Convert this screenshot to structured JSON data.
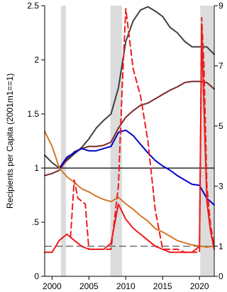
{
  "chart_data": {
    "type": "line",
    "xlim": [
      1999,
      2022
    ],
    "left_axis": {
      "label": "Recipients per Capita (2001m1==1)",
      "ylim": [
        0,
        2.5
      ],
      "ticks": [
        0,
        0.5,
        1,
        1.5,
        2,
        2.5
      ],
      "tick_labels": [
        "0",
        ".5",
        "1",
        "1.5",
        "2",
        "2.5"
      ]
    },
    "right_axis": {
      "ylim": [
        0,
        9
      ],
      "ticks": [
        0,
        1,
        3,
        5,
        7,
        9
      ],
      "tick_labels": [
        "0",
        "1",
        "3",
        "5",
        "7",
        "9"
      ]
    },
    "x_ticks": [
      2000,
      2005,
      2010,
      2015,
      2020
    ],
    "x_tick_labels": [
      "2000",
      "2005",
      "2010",
      "2015",
      "2020"
    ],
    "grid": false,
    "recession_shading": [
      [
        2001.2,
        2001.9
      ],
      [
        2007.9,
        2009.5
      ],
      [
        2020.1,
        2021.9
      ]
    ],
    "reference_lines": [
      {
        "axis": "left",
        "y": 1,
        "color": "#000000",
        "style": "solid"
      },
      {
        "axis": "right",
        "y": 1,
        "color": "#555555",
        "style": "dashed"
      }
    ],
    "series": [
      {
        "axis": "left",
        "color": "#404040",
        "style": "solid",
        "x": [
          1999,
          2000,
          2001,
          2002,
          2003,
          2004,
          2005,
          2006,
          2007,
          2008,
          2009,
          2010,
          2011,
          2012,
          2013,
          2014,
          2015,
          2016,
          2017,
          2018,
          2019,
          2020,
          2021,
          2022
        ],
        "y": [
          1.12,
          1.05,
          1.0,
          1.07,
          1.13,
          1.19,
          1.27,
          1.37,
          1.44,
          1.5,
          1.74,
          2.17,
          2.36,
          2.46,
          2.49,
          2.45,
          2.4,
          2.3,
          2.25,
          2.17,
          2.12,
          2.12,
          2.12,
          2.05
        ]
      },
      {
        "axis": "left",
        "color": "#7a2a2a",
        "style": "solid",
        "x": [
          1999,
          2000,
          2001,
          2002,
          2003,
          2004,
          2005,
          2006,
          2007,
          2008,
          2009,
          2010,
          2011,
          2012,
          2013,
          2014,
          2015,
          2016,
          2017,
          2018,
          2019,
          2020,
          2021,
          2022
        ],
        "y": [
          0.93,
          0.95,
          0.98,
          1.08,
          1.15,
          1.18,
          1.2,
          1.2,
          1.21,
          1.24,
          1.37,
          1.47,
          1.53,
          1.58,
          1.6,
          1.64,
          1.68,
          1.72,
          1.75,
          1.79,
          1.8,
          1.8,
          1.79,
          1.73
        ]
      },
      {
        "axis": "left",
        "color": "#0000cc",
        "style": "solid",
        "x": [
          1999,
          2000,
          2001,
          2002,
          2003,
          2004,
          2005,
          2006,
          2007,
          2008,
          2009,
          2010,
          2011,
          2012,
          2013,
          2014,
          2015,
          2016,
          2017,
          2018,
          2019,
          2020,
          2021,
          2022
        ],
        "y": [
          null,
          null,
          1.0,
          1.1,
          1.14,
          1.18,
          1.16,
          1.16,
          1.18,
          1.2,
          1.33,
          1.35,
          1.3,
          1.22,
          1.14,
          1.07,
          1.02,
          0.98,
          0.93,
          0.89,
          0.85,
          0.84,
          0.72,
          0.66
        ]
      },
      {
        "axis": "left",
        "color": "#d4782a",
        "style": "solid",
        "x": [
          1999,
          2000,
          2001,
          2002,
          2003,
          2004,
          2005,
          2006,
          2007,
          2008,
          2009,
          2010,
          2011,
          2012,
          2013,
          2014,
          2015,
          2016,
          2017,
          2018,
          2019,
          2020,
          2021,
          2022
        ],
        "y": [
          1.34,
          1.2,
          1.0,
          0.92,
          0.87,
          0.81,
          0.78,
          0.74,
          0.71,
          0.69,
          0.73,
          0.67,
          0.62,
          0.56,
          0.51,
          0.44,
          0.41,
          0.37,
          0.33,
          0.31,
          0.29,
          0.28,
          0.27,
          0.28
        ]
      },
      {
        "axis": "right",
        "color": "#ee1c1c",
        "style": "solid",
        "x": [
          1999,
          2000,
          2001,
          2002,
          2003,
          2004,
          2005,
          2006,
          2007,
          2008,
          2009,
          2010,
          2011,
          2012,
          2013,
          2014,
          2015,
          2016,
          2017,
          2018,
          2019,
          2020,
          2020.3,
          2020.5,
          2021,
          2021.5,
          2022
        ],
        "y": [
          0.8,
          0.8,
          1.2,
          1.4,
          1.2,
          1.0,
          0.9,
          0.9,
          0.9,
          1.1,
          2.4,
          1.9,
          1.6,
          1.4,
          1.2,
          1.0,
          0.9,
          0.8,
          0.8,
          0.8,
          0.8,
          1.0,
          8.3,
          6.5,
          2.5,
          1.5,
          0.9
        ]
      },
      {
        "axis": "right",
        "color": "#ee1c1c",
        "style": "dashed",
        "x": [
          2002.5,
          2003.0,
          2003.5,
          2004.5,
          2005.0,
          2008.0,
          2009.0,
          2009.5,
          2010.0,
          2010.5,
          2011.0,
          2012.0,
          2013.0,
          2014.0,
          2015.0,
          2016.0,
          2017.0,
          2018.0,
          2019.0,
          2020.0,
          2020.3,
          2020.6,
          2021.0,
          2021.5,
          2022.0
        ],
        "y": [
          1.3,
          3.2,
          2.6,
          2.4,
          0.9,
          0.9,
          3.0,
          6.2,
          8.9,
          7.9,
          6.9,
          6.0,
          4.5,
          2.2,
          0.9,
          0.9,
          0.9,
          0.8,
          0.8,
          0.8,
          8.6,
          7.0,
          3.0,
          1.7,
          1.0
        ]
      }
    ]
  }
}
